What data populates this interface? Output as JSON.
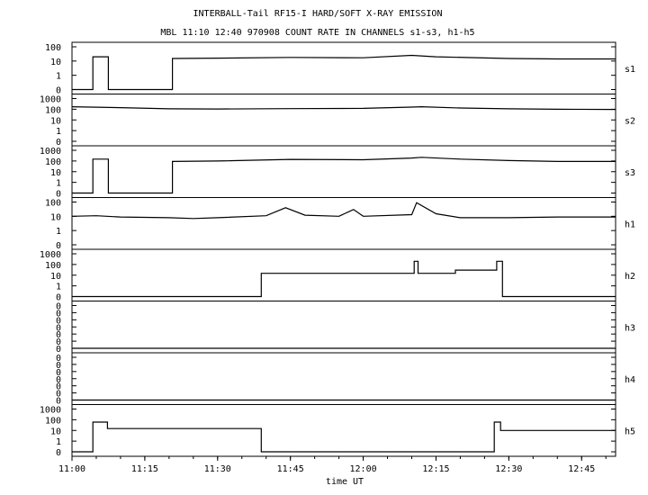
{
  "title_line1": "INTERBALL-Tail RF15-I HARD/SOFT X-RAY EMISSION",
  "title_line2": "MBL 11:10 12:40 970908  COUNT RATE IN CHANNELS s1-s3, h1-h5",
  "xlabel": "time UT",
  "chart_data": {
    "type": "line",
    "title": "INTERBALL-Tail RF15-I HARD/SOFT X-RAY EMISSION",
    "subtitle": "MBL 11:10 12:40 970908  COUNT RATE IN CHANNELS s1-s3, h1-h5",
    "xlabel": "time UT",
    "x_ticks": [
      "11:00",
      "11:15",
      "11:30",
      "11:45",
      "12:00",
      "12:15",
      "12:30",
      "12:45"
    ],
    "x_range_minutes_after_1100": [
      0,
      112
    ],
    "y_scale": "log",
    "grid": false,
    "panels": [
      {
        "name": "s1",
        "y_ticks": [
          "100",
          "10",
          "1",
          "0"
        ],
        "series": [
          {
            "x": [
              0,
              4.3,
              4.3,
              7.5,
              7.5,
              20.7,
              20.7,
              30,
              45,
              60,
              70,
              75,
              90,
              100,
              112
            ],
            "y": [
              0,
              0,
              20,
              20,
              0,
              0,
              15,
              16,
              18,
              17,
              25,
              20,
              15,
              14,
              14
            ]
          }
        ]
      },
      {
        "name": "s2",
        "y_ticks": [
          "1000",
          "100",
          "10",
          "1",
          "0"
        ],
        "series": [
          {
            "x": [
              0,
              10,
              20,
              30,
              45,
              60,
              70,
              72,
              80,
              90,
              100,
              112
            ],
            "y": [
              170,
              140,
              110,
              105,
              115,
              120,
              160,
              170,
              130,
              110,
              100,
              95
            ]
          }
        ]
      },
      {
        "name": "s3",
        "y_ticks": [
          "1000",
          "100",
          "10",
          "1",
          "0"
        ],
        "series": [
          {
            "x": [
              0,
              4.3,
              4.3,
              7.5,
              7.5,
              20.7,
              20.7,
              30,
              45,
              60,
              70,
              72,
              80,
              90,
              100,
              112
            ],
            "y": [
              0,
              0,
              150,
              150,
              0,
              0,
              90,
              100,
              140,
              130,
              190,
              220,
              150,
              110,
              90,
              90
            ]
          }
        ]
      },
      {
        "name": "h1",
        "y_ticks": [
          "100",
          "10",
          "1",
          "0"
        ],
        "series": [
          {
            "x": [
              0,
              5,
              10,
              20,
              25,
              30,
              40,
              44,
              48,
              55,
              58,
              60,
              70,
              71,
              75,
              80,
              90,
              100,
              112
            ],
            "y": [
              10,
              11,
              9,
              8,
              7,
              8,
              11,
              40,
              12,
              10,
              30,
              10,
              13,
              90,
              15,
              8,
              8,
              9,
              9
            ]
          }
        ]
      },
      {
        "name": "h2",
        "y_ticks": [
          "1000",
          "100",
          "10",
          "1",
          "0"
        ],
        "series": [
          {
            "x": [
              0,
              39,
              39,
              70.5,
              70.5,
              71.3,
              71.3,
              79,
              79,
              87.5,
              87.5,
              88.7,
              88.7,
              112
            ],
            "y": [
              0,
              0,
              15,
              15,
              200,
              200,
              15,
              15,
              30,
              30,
              200,
              200,
              0,
              0
            ]
          }
        ]
      },
      {
        "name": "h3",
        "y_ticks": [
          "0",
          "0",
          "0",
          "0",
          "0",
          "0",
          "0"
        ],
        "series": [
          {
            "x": [
              0,
              112
            ],
            "y": [
              0,
              0
            ]
          }
        ]
      },
      {
        "name": "h4",
        "y_ticks": [
          "0",
          "0",
          "0",
          "0",
          "0",
          "0",
          "0"
        ],
        "series": [
          {
            "x": [
              0,
              112
            ],
            "y": [
              0,
              0
            ]
          }
        ]
      },
      {
        "name": "h5",
        "y_ticks": [
          "1000",
          "100",
          "10",
          "1",
          "0"
        ],
        "series": [
          {
            "x": [
              0,
              4.3,
              4.3,
              7.3,
              7.3,
              39,
              39,
              87,
              87,
              88.3,
              88.3,
              112
            ],
            "y": [
              0,
              0,
              60,
              60,
              15,
              15,
              0,
              0,
              60,
              60,
              10,
              10
            ]
          }
        ]
      }
    ]
  }
}
